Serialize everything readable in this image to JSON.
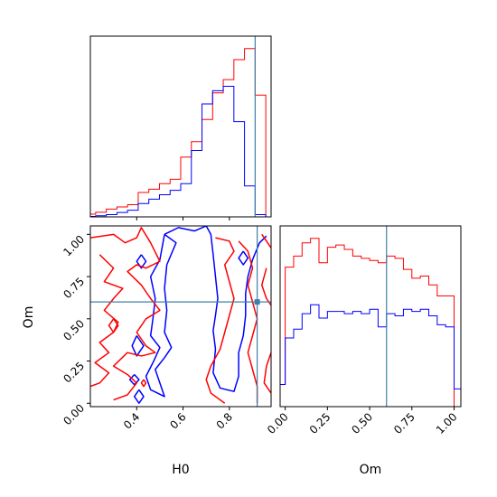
{
  "chart_data": [
    {
      "type": "histogram",
      "panel": "H0 marginal",
      "x": [
        0.3,
        0.34,
        0.38,
        0.42,
        0.46,
        0.5,
        0.54,
        0.58,
        0.62,
        0.66,
        0.7,
        0.74,
        0.78,
        0.82,
        0.86,
        0.9,
        0.94
      ],
      "series": [
        {
          "color": "#ff0000",
          "values": [
            0.012,
            0.021,
            0.035,
            0.045,
            0.055,
            0.11,
            0.125,
            0.15,
            0.17,
            0.27,
            0.34,
            0.44,
            0.56,
            0.62,
            0.71,
            0.76,
            0.55
          ]
        },
        {
          "color": "#0000ff",
          "values": [
            0.002,
            0.005,
            0.01,
            0.02,
            0.03,
            0.06,
            0.08,
            0.1,
            0.12,
            0.15,
            0.3,
            0.51,
            0.57,
            0.59,
            0.43,
            0.14,
            0.01
          ]
        }
      ],
      "xlim": [
        0.3,
        0.98
      ],
      "truth": 0.92
    },
    {
      "type": "contour",
      "panel": "Om vs H0",
      "xlabel": "H0",
      "ylabel": "Om",
      "xlim": [
        0.2,
        0.98
      ],
      "ylim": [
        -0.02,
        1.05
      ],
      "xticks": [
        "0.4",
        "0.6",
        "0.8"
      ],
      "yticks": [
        "0.00",
        "0.25",
        "0.50",
        "0.75",
        "1.00"
      ],
      "truth": [
        0.92,
        0.6
      ],
      "series": [
        {
          "color": "#0000ff",
          "contours": [
            [
              [
                0.52,
                1.0
              ],
              [
                0.58,
                1.04
              ],
              [
                0.65,
                1.02
              ],
              [
                0.7,
                1.05
              ],
              [
                0.72,
                1.0
              ],
              [
                0.73,
                0.88
              ],
              [
                0.74,
                0.75
              ],
              [
                0.75,
                0.62
              ],
              [
                0.74,
                0.52
              ],
              [
                0.73,
                0.43
              ],
              [
                0.74,
                0.32
              ],
              [
                0.73,
                0.18
              ],
              [
                0.76,
                0.09
              ],
              [
                0.82,
                0.07
              ],
              [
                0.84,
                0.16
              ],
              [
                0.84,
                0.3
              ],
              [
                0.86,
                0.4
              ],
              [
                0.87,
                0.52
              ],
              [
                0.87,
                0.65
              ],
              [
                0.88,
                0.75
              ],
              [
                0.9,
                0.85
              ],
              [
                0.93,
                0.95
              ],
              [
                0.96,
                0.99
              ]
            ],
            [
              [
                0.52,
                1.0
              ],
              [
                0.5,
                0.85
              ],
              [
                0.46,
                0.75
              ],
              [
                0.48,
                0.62
              ],
              [
                0.47,
                0.5
              ],
              [
                0.46,
                0.4
              ],
              [
                0.5,
                0.33
              ],
              [
                0.47,
                0.24
              ],
              [
                0.44,
                0.16
              ],
              [
                0.46,
                0.08
              ],
              [
                0.52,
                0.04
              ],
              [
                0.5,
                0.12
              ],
              [
                0.48,
                0.2
              ],
              [
                0.52,
                0.27
              ],
              [
                0.55,
                0.33
              ],
              [
                0.52,
                0.42
              ],
              [
                0.53,
                0.55
              ],
              [
                0.52,
                0.68
              ],
              [
                0.53,
                0.82
              ],
              [
                0.57,
                0.95
              ],
              [
                0.52,
                1.0
              ]
            ],
            [
              [
                0.4,
                0.4
              ],
              [
                0.43,
                0.34
              ],
              [
                0.4,
                0.28
              ],
              [
                0.38,
                0.34
              ],
              [
                0.4,
                0.4
              ]
            ],
            [
              [
                0.39,
                0.17
              ],
              [
                0.41,
                0.14
              ],
              [
                0.39,
                0.11
              ],
              [
                0.37,
                0.14
              ],
              [
                0.39,
                0.17
              ]
            ],
            [
              [
                0.41,
                0.08
              ],
              [
                0.43,
                0.04
              ],
              [
                0.41,
                0.0
              ],
              [
                0.39,
                0.04
              ],
              [
                0.41,
                0.08
              ]
            ],
            [
              [
                0.42,
                0.88
              ],
              [
                0.44,
                0.84
              ],
              [
                0.42,
                0.8
              ],
              [
                0.4,
                0.84
              ],
              [
                0.42,
                0.88
              ]
            ],
            [
              [
                0.86,
                0.9
              ],
              [
                0.88,
                0.86
              ],
              [
                0.86,
                0.82
              ],
              [
                0.84,
                0.86
              ],
              [
                0.86,
                0.9
              ]
            ]
          ]
        },
        {
          "color": "#ff0000",
          "contours": [
            [
              [
                0.2,
                0.98
              ],
              [
                0.3,
                1.0
              ],
              [
                0.35,
                0.95
              ],
              [
                0.4,
                0.98
              ],
              [
                0.42,
                1.04
              ],
              [
                0.46,
                0.95
              ],
              [
                0.5,
                0.84
              ],
              [
                0.44,
                0.8
              ],
              [
                0.4,
                0.82
              ],
              [
                0.36,
                0.78
              ],
              [
                0.42,
                0.7
              ],
              [
                0.46,
                0.62
              ],
              [
                0.5,
                0.55
              ],
              [
                0.44,
                0.5
              ],
              [
                0.4,
                0.42
              ],
              [
                0.44,
                0.34
              ],
              [
                0.48,
                0.3
              ],
              [
                0.42,
                0.28
              ],
              [
                0.36,
                0.3
              ],
              [
                0.3,
                0.22
              ],
              [
                0.36,
                0.17
              ],
              [
                0.4,
                0.12
              ],
              [
                0.36,
                0.05
              ],
              [
                0.3,
                0.02
              ]
            ],
            [
              [
                0.24,
                0.88
              ],
              [
                0.3,
                0.8
              ],
              [
                0.26,
                0.72
              ],
              [
                0.34,
                0.68
              ],
              [
                0.3,
                0.62
              ],
              [
                0.26,
                0.55
              ],
              [
                0.32,
                0.48
              ],
              [
                0.3,
                0.42
              ],
              [
                0.24,
                0.36
              ],
              [
                0.28,
                0.3
              ],
              [
                0.22,
                0.24
              ],
              [
                0.28,
                0.18
              ],
              [
                0.24,
                0.12
              ],
              [
                0.2,
                0.1
              ]
            ],
            [
              [
                0.74,
                0.98
              ],
              [
                0.8,
                0.96
              ],
              [
                0.82,
                0.9
              ],
              [
                0.78,
                0.82
              ],
              [
                0.8,
                0.72
              ],
              [
                0.82,
                0.62
              ],
              [
                0.8,
                0.52
              ],
              [
                0.78,
                0.42
              ],
              [
                0.76,
                0.32
              ],
              [
                0.72,
                0.22
              ],
              [
                0.7,
                0.14
              ],
              [
                0.72,
                0.06
              ],
              [
                0.78,
                0.0
              ]
            ],
            [
              [
                0.84,
                0.96
              ],
              [
                0.88,
                0.9
              ],
              [
                0.9,
                0.8
              ],
              [
                0.88,
                0.7
              ],
              [
                0.9,
                0.6
              ],
              [
                0.92,
                0.5
              ],
              [
                0.9,
                0.4
              ],
              [
                0.88,
                0.3
              ],
              [
                0.9,
                0.2
              ],
              [
                0.92,
                0.1
              ],
              [
                0.92,
                0.0
              ]
            ],
            [
              [
                0.94,
                1.0
              ],
              [
                0.96,
                0.96
              ],
              [
                0.98,
                0.92
              ]
            ],
            [
              [
                0.96,
                0.8
              ],
              [
                0.94,
                0.7
              ],
              [
                0.96,
                0.62
              ],
              [
                0.98,
                0.58
              ]
            ],
            [
              [
                0.98,
                0.3
              ],
              [
                0.96,
                0.22
              ],
              [
                0.95,
                0.12
              ],
              [
                0.98,
                0.06
              ]
            ],
            [
              [
                0.43,
                0.14
              ],
              [
                0.44,
                0.12
              ],
              [
                0.43,
                0.1
              ],
              [
                0.42,
                0.12
              ],
              [
                0.43,
                0.14
              ]
            ],
            [
              [
                0.3,
                0.5
              ],
              [
                0.32,
                0.46
              ],
              [
                0.3,
                0.42
              ],
              [
                0.28,
                0.46
              ],
              [
                0.3,
                0.5
              ]
            ]
          ]
        }
      ]
    },
    {
      "type": "histogram",
      "panel": "Om marginal",
      "xlabel": "Om",
      "xlim": [
        -0.03,
        1.04
      ],
      "xticks": [
        "0.00",
        "0.25",
        "0.50",
        "0.75",
        "1.00"
      ],
      "truth": 0.6,
      "x": [
        -0.025,
        0.025,
        0.075,
        0.125,
        0.175,
        0.225,
        0.275,
        0.325,
        0.375,
        0.425,
        0.475,
        0.525,
        0.575,
        0.625,
        0.675,
        0.725,
        0.775,
        0.825,
        0.875,
        0.925,
        0.975,
        1.025
      ],
      "series": [
        {
          "color": "#ff0000",
          "values": [
            0.1,
            0.63,
            0.68,
            0.74,
            0.76,
            0.65,
            0.72,
            0.73,
            0.71,
            0.68,
            0.67,
            0.66,
            0.65,
            0.68,
            0.67,
            0.62,
            0.58,
            0.59,
            0.55,
            0.5,
            0.5,
            0.0
          ]
        },
        {
          "color": "#0000ff",
          "values": [
            0.1,
            0.31,
            0.35,
            0.42,
            0.46,
            0.4,
            0.43,
            0.43,
            0.42,
            0.43,
            0.42,
            0.44,
            0.36,
            0.42,
            0.41,
            0.44,
            0.43,
            0.44,
            0.41,
            0.37,
            0.36,
            0.08
          ]
        }
      ]
    }
  ]
}
